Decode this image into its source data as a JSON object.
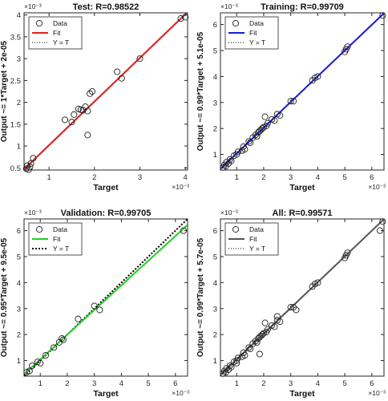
{
  "chart_data": [
    {
      "type": "scatter",
      "title": "Test: R=0.98522",
      "xlabel": "Target",
      "ylabel": "Output ~= 1*Target + 2e-05",
      "exponent_label": "×10⁻³",
      "y_exponent_label": "×10⁻³",
      "xlim": [
        0.45,
        4.05
      ],
      "ylim": [
        0.45,
        4.05
      ],
      "xticks": [
        "1",
        "2",
        "3",
        "4"
      ],
      "xtick_values": [
        1,
        2,
        3,
        4
      ],
      "yticks": [
        "0.5",
        "1",
        "1.5",
        "2",
        "2.5",
        "3",
        "3.5",
        "4"
      ],
      "ytick_values": [
        0.5,
        1,
        1.5,
        2,
        2.5,
        3,
        3.5,
        4
      ],
      "fit": {
        "slope": 1.0,
        "intercept": 0.02,
        "color": "#e02020"
      },
      "legend": [
        "Data",
        "Fit",
        "Y = T"
      ],
      "points": [
        [
          0.5,
          0.48
        ],
        [
          0.52,
          0.55
        ],
        [
          0.55,
          0.46
        ],
        [
          0.58,
          0.52
        ],
        [
          0.6,
          0.6
        ],
        [
          0.65,
          0.72
        ],
        [
          1.35,
          1.6
        ],
        [
          1.5,
          1.55
        ],
        [
          1.55,
          1.72
        ],
        [
          1.65,
          1.85
        ],
        [
          1.7,
          1.83
        ],
        [
          1.75,
          1.82
        ],
        [
          1.8,
          1.9
        ],
        [
          1.85,
          1.8
        ],
        [
          1.9,
          2.2
        ],
        [
          1.95,
          2.25
        ],
        [
          1.85,
          1.25
        ],
        [
          2.5,
          2.7
        ],
        [
          2.6,
          2.55
        ],
        [
          3.0,
          3.0
        ],
        [
          3.9,
          3.92
        ],
        [
          4.0,
          3.95
        ]
      ]
    },
    {
      "type": "scatter",
      "title": "Training: R=0.99709",
      "xlabel": "Target",
      "ylabel": "Output ~= 0.99*Target + 5.1e-05",
      "exponent_label": "×10⁻³",
      "y_exponent_label": "×10⁻³",
      "xlim": [
        0.4,
        6.45
      ],
      "ylim": [
        0.4,
        6.45
      ],
      "xticks": [
        "1",
        "2",
        "3",
        "4",
        "5",
        "6"
      ],
      "xtick_values": [
        1,
        2,
        3,
        4,
        5,
        6
      ],
      "yticks": [
        "1",
        "2",
        "3",
        "4",
        "5",
        "6"
      ],
      "ytick_values": [
        1,
        2,
        3,
        4,
        5,
        6
      ],
      "fit": {
        "slope": 0.99,
        "intercept": 0.051,
        "color": "#1a1adc"
      },
      "legend": [
        "Data",
        "Fit",
        "Y = T"
      ],
      "points": [
        [
          0.5,
          0.5
        ],
        [
          0.55,
          0.6
        ],
        [
          0.6,
          0.55
        ],
        [
          0.62,
          0.7
        ],
        [
          0.7,
          0.65
        ],
        [
          0.75,
          0.8
        ],
        [
          0.8,
          0.75
        ],
        [
          0.9,
          0.95
        ],
        [
          1.0,
          1.0
        ],
        [
          1.05,
          1.1
        ],
        [
          1.2,
          1.15
        ],
        [
          1.25,
          1.3
        ],
        [
          1.3,
          1.2
        ],
        [
          1.45,
          1.5
        ],
        [
          1.5,
          1.45
        ],
        [
          1.6,
          1.65
        ],
        [
          1.7,
          1.75
        ],
        [
          1.75,
          1.7
        ],
        [
          1.8,
          1.85
        ],
        [
          1.85,
          1.9
        ],
        [
          1.9,
          1.95
        ],
        [
          1.95,
          2.0
        ],
        [
          2.0,
          2.05
        ],
        [
          2.05,
          2.45
        ],
        [
          2.1,
          2.1
        ],
        [
          2.15,
          2.2
        ],
        [
          2.3,
          2.35
        ],
        [
          2.4,
          2.3
        ],
        [
          2.5,
          2.55
        ],
        [
          2.6,
          2.5
        ],
        [
          3.0,
          3.05
        ],
        [
          3.1,
          3.05
        ],
        [
          3.8,
          3.85
        ],
        [
          3.9,
          3.95
        ],
        [
          4.0,
          4.0
        ],
        [
          5.0,
          4.95
        ],
        [
          5.05,
          5.05
        ],
        [
          5.1,
          5.15
        ],
        [
          6.4,
          6.35
        ]
      ]
    },
    {
      "type": "scatter",
      "title": "Validation: R=0.99705",
      "xlabel": "Target",
      "ylabel": "Output ~= 0.95*Target + 9.5e-05",
      "exponent_label": "×10⁻³",
      "y_exponent_label": "×10⁻³",
      "xlim": [
        0.4,
        6.45
      ],
      "ylim": [
        0.4,
        6.45
      ],
      "xticks": [
        "1",
        "2",
        "3",
        "4",
        "5",
        "6"
      ],
      "xtick_values": [
        1,
        2,
        3,
        4,
        5,
        6
      ],
      "yticks": [
        "1",
        "2",
        "3",
        "4",
        "5",
        "6"
      ],
      "ytick_values": [
        1,
        2,
        3,
        4,
        5,
        6
      ],
      "fit": {
        "slope": 0.95,
        "intercept": 0.095,
        "color": "#22d022"
      },
      "legend": [
        "Data",
        "Fit",
        "Y = T"
      ],
      "points": [
        [
          0.5,
          0.55
        ],
        [
          0.6,
          0.6
        ],
        [
          0.7,
          0.8
        ],
        [
          0.9,
          0.95
        ],
        [
          1.0,
          0.9
        ],
        [
          1.2,
          1.2
        ],
        [
          1.5,
          1.5
        ],
        [
          1.7,
          1.7
        ],
        [
          1.8,
          1.85
        ],
        [
          1.85,
          1.8
        ],
        [
          2.4,
          2.6
        ],
        [
          3.0,
          3.1
        ],
        [
          3.2,
          2.95
        ],
        [
          6.3,
          6.0
        ]
      ]
    },
    {
      "type": "scatter",
      "title": "All: R=0.99571",
      "xlabel": "Target",
      "ylabel": "Output ~= 0.99*Target + 5.7e-05",
      "exponent_label": "×10⁻³",
      "y_exponent_label": "×10⁻³",
      "xlim": [
        0.4,
        6.45
      ],
      "ylim": [
        0.4,
        6.45
      ],
      "xticks": [
        "1",
        "2",
        "3",
        "4",
        "5",
        "6"
      ],
      "xtick_values": [
        1,
        2,
        3,
        4,
        5,
        6
      ],
      "yticks": [
        "1",
        "2",
        "3",
        "4",
        "5",
        "6"
      ],
      "ytick_values": [
        1,
        2,
        3,
        4,
        5,
        6
      ],
      "fit": {
        "slope": 0.99,
        "intercept": 0.057,
        "color": "#555555"
      },
      "legend": [
        "Data",
        "Fit",
        "Y = T"
      ],
      "points": [
        [
          0.5,
          0.5
        ],
        [
          0.55,
          0.6
        ],
        [
          0.6,
          0.55
        ],
        [
          0.62,
          0.7
        ],
        [
          0.7,
          0.65
        ],
        [
          0.75,
          0.8
        ],
        [
          0.8,
          0.75
        ],
        [
          0.9,
          0.95
        ],
        [
          1.0,
          1.0
        ],
        [
          1.05,
          1.1
        ],
        [
          1.2,
          1.15
        ],
        [
          1.25,
          1.3
        ],
        [
          1.3,
          1.2
        ],
        [
          1.45,
          1.5
        ],
        [
          1.5,
          1.45
        ],
        [
          1.6,
          1.65
        ],
        [
          1.7,
          1.75
        ],
        [
          1.75,
          1.7
        ],
        [
          1.8,
          1.85
        ],
        [
          1.85,
          1.9
        ],
        [
          1.9,
          1.95
        ],
        [
          1.95,
          2.0
        ],
        [
          2.0,
          2.05
        ],
        [
          2.05,
          2.45
        ],
        [
          2.1,
          2.1
        ],
        [
          2.15,
          2.2
        ],
        [
          2.3,
          2.35
        ],
        [
          2.4,
          2.3
        ],
        [
          2.5,
          2.55
        ],
        [
          2.6,
          2.5
        ],
        [
          3.0,
          3.05
        ],
        [
          3.1,
          3.05
        ],
        [
          3.8,
          3.85
        ],
        [
          3.9,
          3.95
        ],
        [
          4.0,
          4.0
        ],
        [
          5.0,
          4.95
        ],
        [
          5.05,
          5.05
        ],
        [
          5.1,
          5.15
        ],
        [
          6.4,
          6.35
        ],
        [
          1.85,
          1.25
        ],
        [
          2.5,
          2.7
        ],
        [
          3.2,
          2.95
        ],
        [
          6.3,
          6.0
        ],
        [
          1.0,
          0.9
        ]
      ]
    }
  ]
}
